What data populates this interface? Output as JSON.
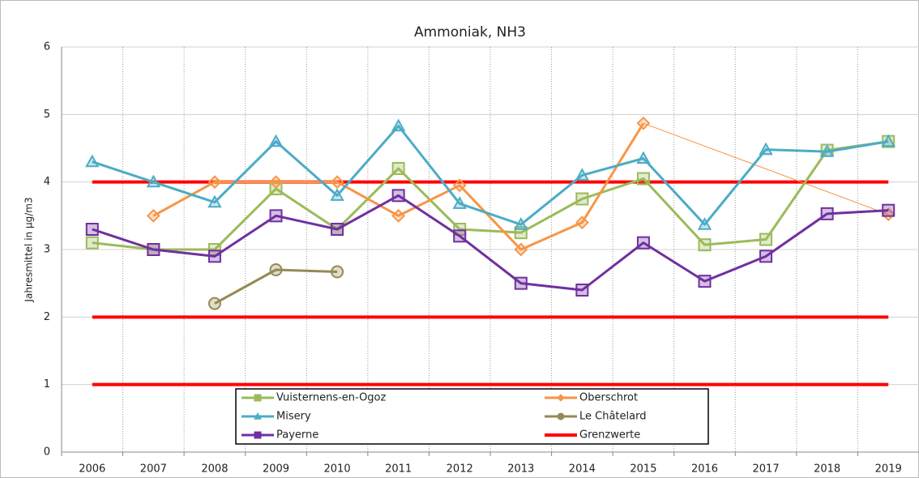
{
  "chart_data": {
    "type": "line",
    "title": "Ammoniak, NH3",
    "y_label": "Jahresmittel in µg/m3",
    "categories": [
      "2006",
      "2007",
      "2008",
      "2009",
      "2010",
      "2011",
      "2012",
      "2013",
      "2014",
      "2015",
      "2016",
      "2017",
      "2018",
      "2019"
    ],
    "series": [
      {
        "name": "Vuisternens-en-Ogoz",
        "color": "#9bbb59",
        "marker": "square",
        "values": [
          3.1,
          3.0,
          3.0,
          3.9,
          3.3,
          4.2,
          3.3,
          3.25,
          3.75,
          4.05,
          3.07,
          3.15,
          4.47,
          4.6
        ]
      },
      {
        "name": "Oberschrot",
        "color": "#f79646",
        "marker": "diamond",
        "values": [
          null,
          3.5,
          4.0,
          4.0,
          4.0,
          3.5,
          3.95,
          3.0,
          3.4,
          4.87,
          null,
          null,
          null,
          3.52
        ]
      },
      {
        "name": "Misery",
        "color": "#4bacc6",
        "marker": "triangle",
        "values": [
          4.3,
          4.0,
          3.7,
          4.6,
          3.8,
          4.83,
          3.68,
          3.37,
          4.1,
          4.35,
          3.37,
          4.48,
          4.45,
          4.6
        ]
      },
      {
        "name": "Le Châtelard",
        "color": "#948a54",
        "marker": "circle",
        "values": [
          null,
          null,
          2.2,
          2.7,
          2.67,
          null,
          null,
          null,
          null,
          null,
          null,
          null,
          null,
          null
        ]
      },
      {
        "name": "Payerne",
        "color": "#7030a0",
        "marker": "square",
        "values": [
          3.3,
          3.0,
          2.9,
          3.5,
          3.3,
          3.8,
          3.2,
          2.5,
          2.4,
          3.1,
          2.53,
          2.9,
          3.53,
          3.58
        ]
      }
    ],
    "reference_lines": {
      "name": "Grenzwerte",
      "color": "#ff0000",
      "values": [
        4,
        2,
        1
      ]
    },
    "ylim": [
      0,
      6
    ],
    "yticks": [
      0,
      1,
      2,
      3,
      4,
      5,
      6
    ],
    "grid": true
  }
}
